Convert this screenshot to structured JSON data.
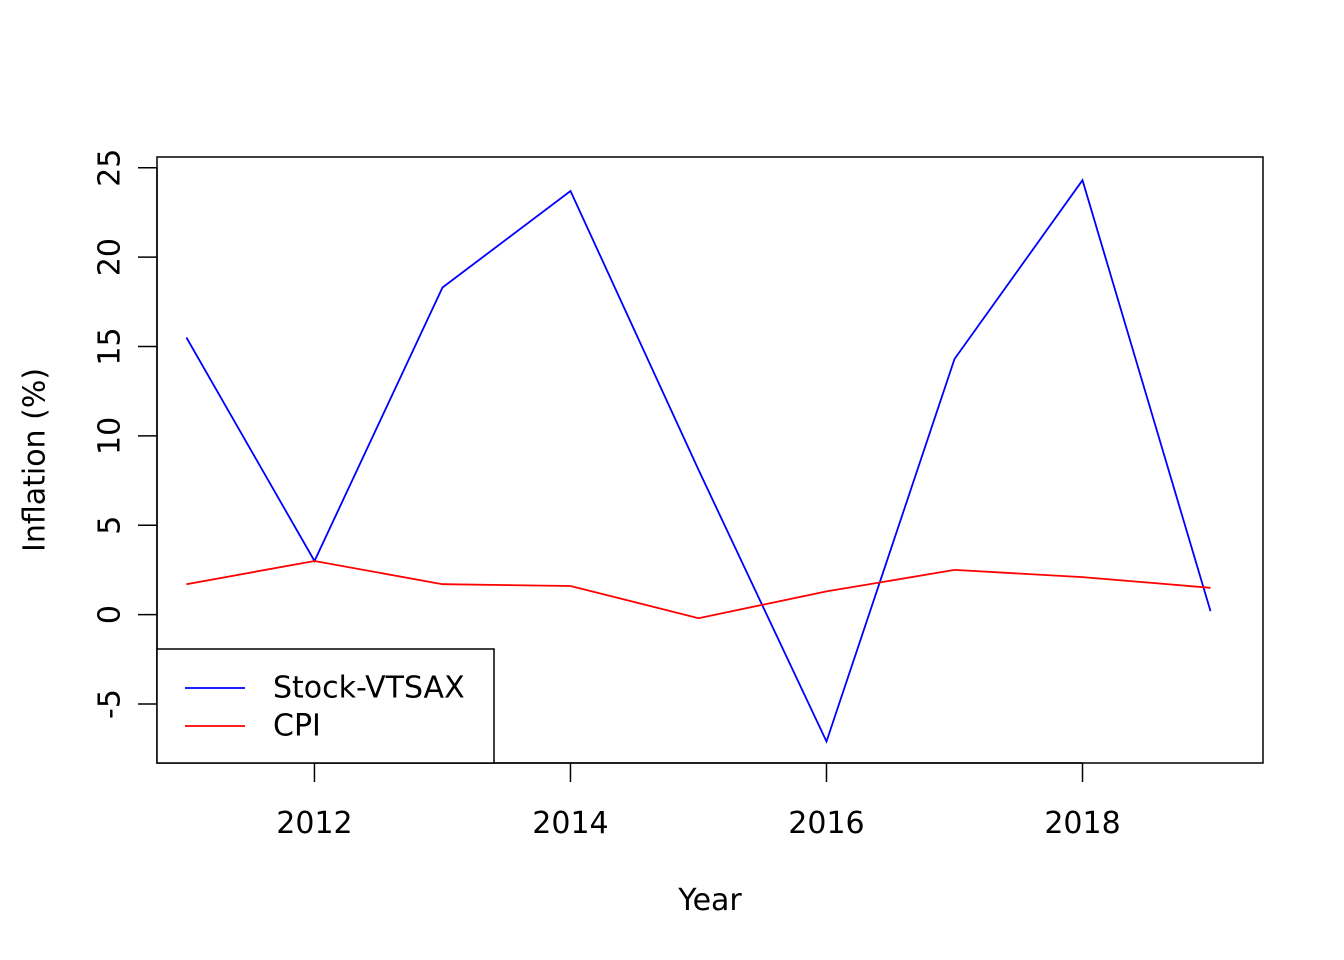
{
  "chart_data": {
    "type": "line",
    "title": "",
    "xlabel": "Year",
    "ylabel": "Inflation (%)",
    "x": [
      2011,
      2012,
      2013,
      2014,
      2015,
      2016,
      2017,
      2018,
      2019
    ],
    "xlim": [
      2010.77,
      2019.41
    ],
    "ylim": [
      -8.3,
      25.6
    ],
    "x_ticks": [
      2012,
      2014,
      2016,
      2018
    ],
    "y_ticks": [
      -5,
      0,
      5,
      10,
      15,
      20,
      25
    ],
    "grid": false,
    "legend": {
      "position": "bottom-left"
    },
    "series": [
      {
        "name": "Stock-VTSAX",
        "color": "#0000ff",
        "values": [
          15.5,
          3.0,
          18.3,
          23.7,
          8.1,
          -7.1,
          14.3,
          24.3,
          0.2
        ]
      },
      {
        "name": "CPI",
        "color": "#ff0000",
        "values": [
          1.7,
          3.0,
          1.7,
          1.6,
          -0.2,
          1.3,
          2.5,
          2.1,
          1.5
        ]
      }
    ]
  }
}
